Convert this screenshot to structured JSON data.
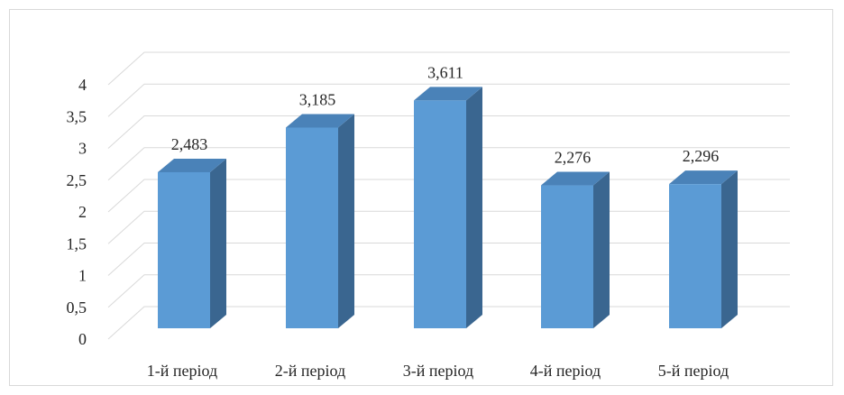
{
  "chart_data": {
    "type": "bar",
    "categories": [
      "1-й період",
      "2-й період",
      "3-й період",
      "4-й період",
      "5-й період"
    ],
    "values": [
      2.483,
      3.185,
      3.611,
      2.276,
      2.296
    ],
    "data_labels": [
      "2,483",
      "3,185",
      "3,611",
      "2,276",
      "2,296"
    ],
    "y_ticks": [
      "0",
      "0,5",
      "1",
      "1,5",
      "2",
      "2,5",
      "3",
      "3,5",
      "4"
    ],
    "ylim": [
      0,
      4
    ],
    "title": "",
    "xlabel": "",
    "ylabel": "",
    "grid": true,
    "legend": "none",
    "style": "3d-column",
    "colors": {
      "bar_front": "#5b9bd5",
      "bar_top": "#4a82b8",
      "bar_side": "#3a6690",
      "grid": "#d9d9d9"
    }
  }
}
